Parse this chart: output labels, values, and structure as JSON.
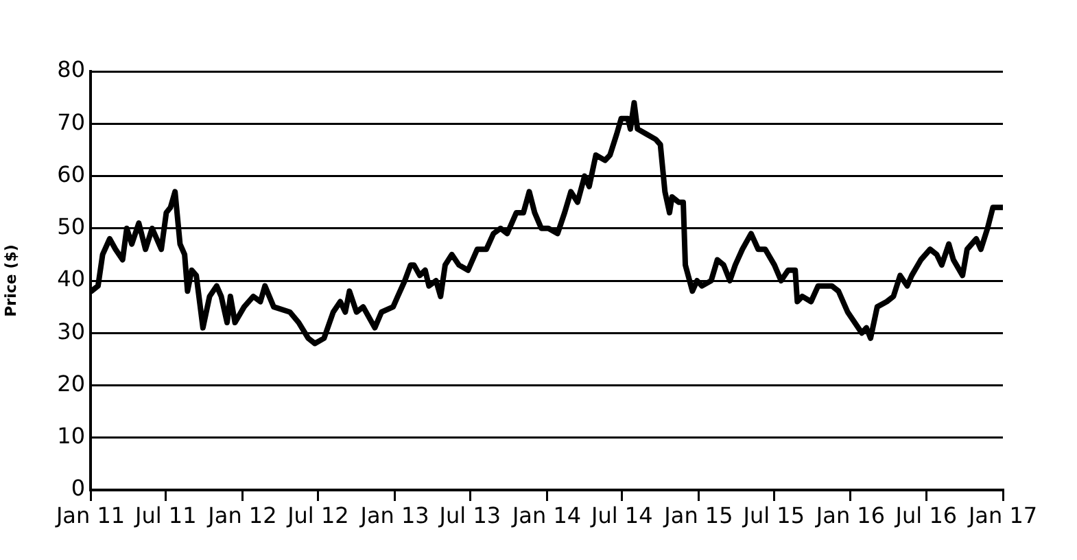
{
  "chart_data": {
    "type": "line",
    "ylabel": "Price ($)",
    "x": [
      "2011-01-03",
      "2011-01-19",
      "2011-01-30",
      "2011-02-16",
      "2011-03-02",
      "2011-03-19",
      "2011-03-29",
      "2011-04-10",
      "2011-04-27",
      "2011-05-13",
      "2011-05-29",
      "2011-06-20",
      "2011-07-02",
      "2011-07-12",
      "2011-07-23",
      "2011-08-04",
      "2011-08-15",
      "2011-08-22",
      "2011-09-01",
      "2011-09-12",
      "2011-09-28",
      "2011-10-14",
      "2011-10-31",
      "2011-11-11",
      "2011-11-25",
      "2011-12-03",
      "2011-12-14",
      "2012-01-05",
      "2012-01-27",
      "2012-02-13",
      "2012-02-24",
      "2012-03-16",
      "2012-04-24",
      "2012-05-15",
      "2012-06-07",
      "2012-06-23",
      "2012-07-15",
      "2012-08-06",
      "2012-08-23",
      "2012-09-04",
      "2012-09-14",
      "2012-10-01",
      "2012-10-17",
      "2012-11-14",
      "2012-11-30",
      "2012-12-28",
      "2013-01-08",
      "2013-01-25",
      "2013-02-08",
      "2013-02-16",
      "2013-03-02",
      "2013-03-15",
      "2013-03-24",
      "2013-04-10",
      "2013-04-21",
      "2013-05-02",
      "2013-05-18",
      "2013-06-04",
      "2013-06-26",
      "2013-07-18",
      "2013-08-09",
      "2013-08-26",
      "2013-09-12",
      "2013-09-28",
      "2013-10-20",
      "2013-11-06",
      "2013-11-20",
      "2013-12-03",
      "2013-12-19",
      "2014-01-05",
      "2014-01-27",
      "2014-02-13",
      "2014-02-28",
      "2014-03-16",
      "2014-04-02",
      "2014-04-13",
      "2014-04-29",
      "2014-05-21",
      "2014-06-02",
      "2014-06-18",
      "2014-06-29",
      "2014-07-15",
      "2014-07-21",
      "2014-07-30",
      "2014-08-07",
      "2014-08-29",
      "2014-09-20",
      "2014-10-01",
      "2014-10-12",
      "2014-10-23",
      "2014-10-29",
      "2014-11-14",
      "2014-11-25",
      "2014-11-30",
      "2014-12-17",
      "2014-12-28",
      "2015-01-09",
      "2015-01-31",
      "2015-02-15",
      "2015-03-02",
      "2015-03-17",
      "2015-03-30",
      "2015-04-16",
      "2015-05-07",
      "2015-05-24",
      "2015-06-10",
      "2015-07-02",
      "2015-07-18",
      "2015-08-04",
      "2015-08-21",
      "2015-08-26",
      "2015-09-07",
      "2015-09-28",
      "2015-10-15",
      "2015-11-01",
      "2015-11-17",
      "2015-12-03",
      "2015-12-25",
      "2016-01-11",
      "2016-01-28",
      "2016-02-08",
      "2016-02-18",
      "2016-03-05",
      "2016-03-28",
      "2016-04-13",
      "2016-04-29",
      "2016-05-16",
      "2016-05-27",
      "2016-06-18",
      "2016-07-10",
      "2016-07-26",
      "2016-08-07",
      "2016-08-24",
      "2016-09-04",
      "2016-09-26",
      "2016-10-07",
      "2016-10-29",
      "2016-11-09",
      "2016-11-25",
      "2016-12-08",
      "2016-12-23",
      "2016-12-31"
    ],
    "values": [
      38,
      39,
      45,
      48,
      46,
      44,
      50,
      47,
      51,
      46,
      50,
      46,
      53,
      54,
      57,
      47,
      45,
      38,
      42,
      41,
      31,
      37,
      39,
      37,
      32,
      37,
      32,
      35,
      37,
      36,
      39,
      35,
      34,
      32,
      29,
      28,
      29,
      34,
      36,
      34,
      38,
      34,
      35,
      31,
      34,
      35,
      37,
      40,
      43,
      43,
      41,
      42,
      39,
      40,
      37,
      43,
      45,
      43,
      42,
      46,
      46,
      49,
      50,
      49,
      53,
      53,
      57,
      53,
      50,
      50,
      49,
      53,
      57,
      55,
      60,
      58,
      64,
      63,
      64,
      68,
      71,
      71,
      69,
      74,
      69,
      68,
      67,
      66,
      57,
      53,
      56,
      55,
      55,
      43,
      38,
      40,
      39,
      40,
      44,
      43,
      40,
      43,
      46,
      49,
      46,
      46,
      43,
      40,
      42,
      42,
      36,
      37,
      36,
      39,
      39,
      39,
      38,
      34,
      32,
      30,
      31,
      29,
      35,
      36,
      37,
      41,
      39,
      41,
      44,
      46,
      45,
      43,
      47,
      44,
      41,
      46,
      48,
      46,
      50,
      54,
      54,
      54
    ],
    "color": "#000000",
    "xlim": [
      "2011-01-01",
      "2017-01-01"
    ],
    "xticks": [
      {
        "value": "2011-01-01",
        "label": "Jan 11"
      },
      {
        "value": "2011-07-01",
        "label": "Jul 11"
      },
      {
        "value": "2012-01-01",
        "label": "Jan 12"
      },
      {
        "value": "2012-07-01",
        "label": "Jul 12"
      },
      {
        "value": "2013-01-01",
        "label": "Jan 13"
      },
      {
        "value": "2013-07-01",
        "label": "Jul 13"
      },
      {
        "value": "2014-01-01",
        "label": "Jan 14"
      },
      {
        "value": "2014-07-01",
        "label": "Jul 14"
      },
      {
        "value": "2015-01-01",
        "label": "Jan 15"
      },
      {
        "value": "2015-07-01",
        "label": "Jul 15"
      },
      {
        "value": "2016-01-01",
        "label": "Jan 16"
      },
      {
        "value": "2016-07-01",
        "label": "Jul 16"
      },
      {
        "value": "2017-01-01",
        "label": "Jan 17"
      }
    ],
    "ylim": [
      0,
      80
    ],
    "yticks": [
      0,
      10,
      20,
      30,
      40,
      50,
      60,
      70,
      80
    ],
    "grid": "y",
    "legend": false
  }
}
